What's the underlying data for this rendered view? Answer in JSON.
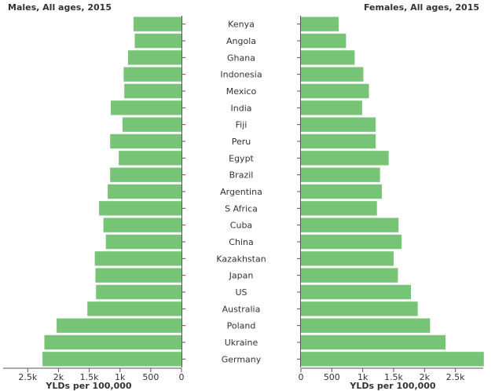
{
  "chart_data": {
    "type": "bar",
    "orientation": "horizontal-butterfly",
    "bar_color": "#77c477",
    "categories": [
      "Kenya",
      "Angola",
      "Ghana",
      "Indonesia",
      "Mexico",
      "India",
      "Fiji",
      "Peru",
      "Egypt",
      "Brazil",
      "Argentina",
      "S Africa",
      "Cuba",
      "China",
      "Kazakhstan",
      "Japan",
      "US",
      "Australia",
      "Poland",
      "Ukraine",
      "Germany"
    ],
    "panels": [
      {
        "title": "Males, All ages, 2015",
        "xlabel": "YLDs per 100,000",
        "direction": "left",
        "xlim": [
          0,
          2900
        ],
        "ticks": [
          0,
          500,
          1000,
          1500,
          2000,
          2500
        ],
        "tick_labels": [
          "0",
          "500",
          "1k",
          "1.5k",
          "2k",
          "2.5k"
        ],
        "values": [
          780,
          760,
          870,
          940,
          930,
          1150,
          960,
          1160,
          1020,
          1160,
          1200,
          1340,
          1270,
          1230,
          1410,
          1400,
          1390,
          1530,
          2030,
          2230,
          2260
        ]
      },
      {
        "title": "Females, All ages, 2015",
        "xlabel": "YLDs per 100,000",
        "direction": "right",
        "xlim": [
          0,
          2950
        ],
        "ticks": [
          0,
          500,
          1000,
          1500,
          2000,
          2500
        ],
        "tick_labels": [
          "0",
          "500",
          "1k",
          "1.5k",
          "2k",
          "2.5k"
        ],
        "values": [
          610,
          730,
          870,
          1010,
          1100,
          990,
          1210,
          1210,
          1420,
          1280,
          1310,
          1230,
          1580,
          1630,
          1500,
          1570,
          1780,
          1890,
          2090,
          2340,
          2960
        ]
      }
    ]
  }
}
